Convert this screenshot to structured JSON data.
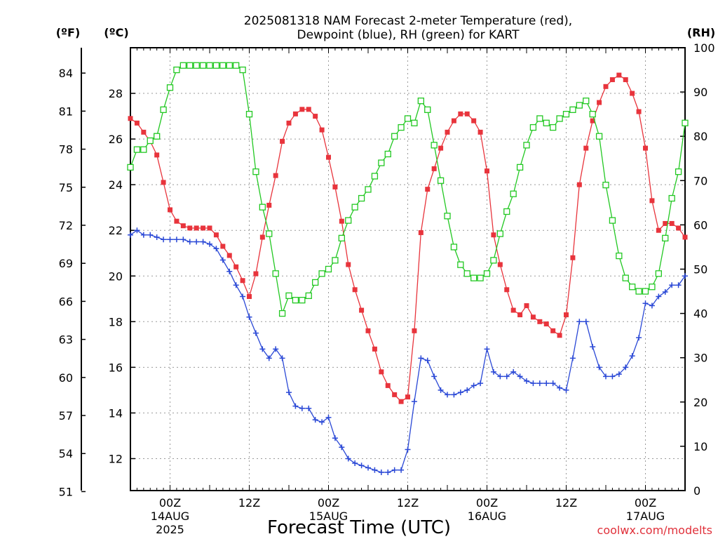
{
  "chart_data": {
    "type": "line",
    "title": "2025081318 NAM Forecast 2-meter Temperature (red),",
    "subtitle": "Dewpoint (blue), RH (green) for KART",
    "xlabel": "Forecast Time (UTC)",
    "credit": "coolwx.com/modelts",
    "axes": {
      "left_f": {
        "unit": "(ºF)",
        "ticks": [
          51,
          54,
          57,
          60,
          63,
          66,
          69,
          72,
          75,
          78,
          81,
          84
        ]
      },
      "left_c": {
        "unit": "(ºC)",
        "ticks": [
          12,
          14,
          16,
          18,
          20,
          22,
          24,
          26,
          28
        ]
      },
      "right_rh": {
        "unit": "(RH)",
        "ticks": [
          0,
          10,
          20,
          30,
          40,
          50,
          60,
          70,
          80,
          90,
          100
        ]
      },
      "ylim_c": [
        10.6,
        30.0
      ],
      "ylim_rh": [
        0,
        100
      ],
      "x_range_hours": [
        -6,
        78
      ]
    },
    "x_ticks": [
      {
        "hour": 0,
        "label": "00Z",
        "date": "14AUG",
        "year": "2025"
      },
      {
        "hour": 12,
        "label": "12Z",
        "date": "",
        "year": ""
      },
      {
        "hour": 24,
        "label": "00Z",
        "date": "15AUG",
        "year": ""
      },
      {
        "hour": 36,
        "label": "12Z",
        "date": "",
        "year": ""
      },
      {
        "hour": 48,
        "label": "00Z",
        "date": "16AUG",
        "year": ""
      },
      {
        "hour": 60,
        "label": "12Z",
        "date": "",
        "year": ""
      },
      {
        "hour": 72,
        "label": "00Z",
        "date": "17AUG",
        "year": ""
      }
    ],
    "x_hours": [
      -6,
      -5,
      -4,
      -3,
      -2,
      -1,
      0,
      1,
      2,
      3,
      4,
      5,
      6,
      7,
      8,
      9,
      10,
      11,
      12,
      13,
      14,
      15,
      16,
      17,
      18,
      19,
      20,
      21,
      22,
      23,
      24,
      25,
      26,
      27,
      28,
      29,
      30,
      31,
      32,
      33,
      34,
      35,
      36,
      37,
      38,
      39,
      40,
      41,
      42,
      43,
      44,
      45,
      46,
      47,
      48,
      49,
      50,
      51,
      52,
      53,
      54,
      55,
      56,
      57,
      58,
      59,
      60,
      61,
      62,
      63,
      64,
      65,
      66,
      67,
      68,
      69,
      70,
      71,
      72,
      73,
      74,
      75,
      76,
      77,
      78
    ],
    "grid": true,
    "series": [
      {
        "name": "Temperature",
        "color": "#e8343c",
        "marker": "filled-square",
        "axis": "celsius",
        "values": [
          26.9,
          26.7,
          26.3,
          25.9,
          25.3,
          24.1,
          22.9,
          22.4,
          22.2,
          22.1,
          22.1,
          22.1,
          22.1,
          21.8,
          21.3,
          20.9,
          20.4,
          19.8,
          19.1,
          20.1,
          21.7,
          23.1,
          24.4,
          25.9,
          26.7,
          27.1,
          27.3,
          27.3,
          27.0,
          26.4,
          25.2,
          23.9,
          22.4,
          20.5,
          19.4,
          18.5,
          17.6,
          16.8,
          15.8,
          15.2,
          14.8,
          14.5,
          14.7,
          17.6,
          21.9,
          23.8,
          24.7,
          25.6,
          26.3,
          26.8,
          27.1,
          27.1,
          26.8,
          26.3,
          24.6,
          21.8,
          20.5,
          19.4,
          18.5,
          18.3,
          18.7,
          18.2,
          18.0,
          17.9,
          17.6,
          17.4,
          18.3,
          20.8,
          24.0,
          25.6,
          26.8,
          27.6,
          28.3,
          28.6,
          28.8,
          28.6,
          28.0,
          27.2,
          25.6,
          23.3,
          22.0,
          22.3,
          22.3,
          22.1,
          21.7
        ]
      },
      {
        "name": "Dewpoint",
        "color": "#2a48d6",
        "marker": "plus",
        "axis": "celsius",
        "values": [
          21.8,
          22.0,
          21.8,
          21.8,
          21.7,
          21.6,
          21.6,
          21.6,
          21.6,
          21.5,
          21.5,
          21.5,
          21.4,
          21.2,
          20.7,
          20.2,
          19.6,
          19.1,
          18.2,
          17.5,
          16.8,
          16.4,
          16.8,
          16.4,
          14.9,
          14.3,
          14.2,
          14.2,
          13.7,
          13.6,
          13.8,
          12.9,
          12.5,
          12.0,
          11.8,
          11.7,
          11.6,
          11.5,
          11.4,
          11.4,
          11.5,
          11.5,
          12.4,
          14.5,
          16.4,
          16.3,
          15.6,
          15.0,
          14.8,
          14.8,
          14.9,
          15.0,
          15.2,
          15.3,
          16.8,
          15.8,
          15.6,
          15.6,
          15.8,
          15.6,
          15.4,
          15.3,
          15.3,
          15.3,
          15.3,
          15.1,
          15.0,
          16.4,
          18.0,
          18.0,
          16.9,
          16.0,
          15.6,
          15.6,
          15.7,
          16.0,
          16.5,
          17.3,
          18.8,
          18.7,
          19.1,
          19.3,
          19.6,
          19.6,
          20.0
        ]
      },
      {
        "name": "RH",
        "color": "#22c822",
        "marker": "open-square",
        "axis": "rh",
        "values": [
          73,
          77,
          77,
          79,
          80,
          86,
          91,
          95,
          96,
          96,
          96,
          96,
          96,
          96,
          96,
          96,
          96,
          95,
          85,
          72,
          64,
          58,
          49,
          40,
          44,
          43,
          43,
          44,
          47,
          49,
          50,
          52,
          57,
          61,
          64,
          66,
          68,
          71,
          74,
          76,
          80,
          82,
          84,
          83,
          88,
          86,
          78,
          70,
          62,
          55,
          51,
          49,
          48,
          48,
          49,
          52,
          58,
          63,
          67,
          73,
          78,
          82,
          84,
          83,
          82,
          84,
          85,
          86,
          87,
          88,
          85,
          80,
          69,
          61,
          53,
          48,
          46,
          45,
          45,
          46,
          49,
          57,
          66,
          72,
          83
        ]
      }
    ]
  }
}
